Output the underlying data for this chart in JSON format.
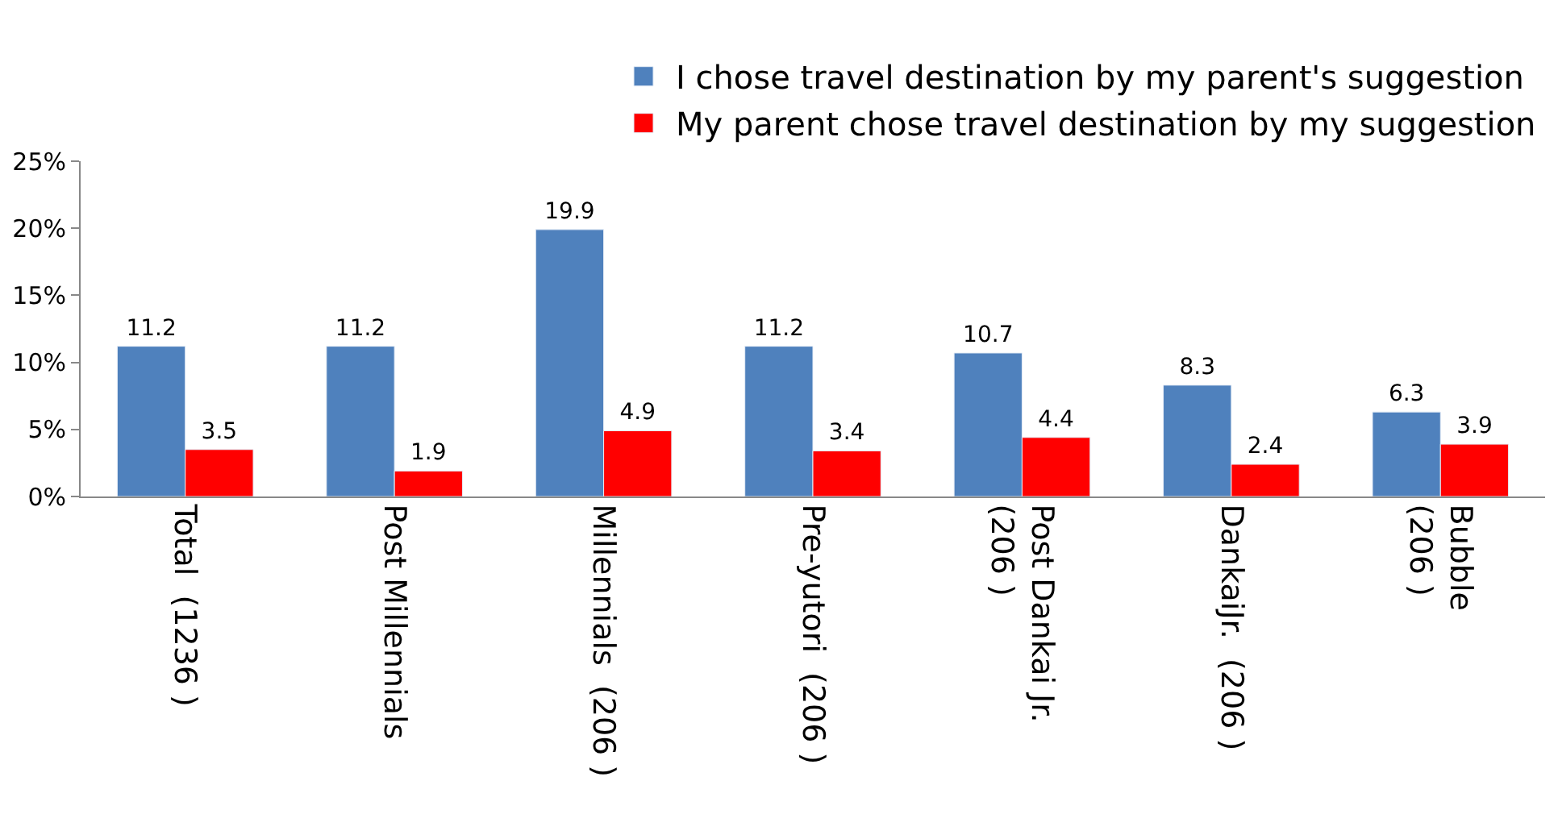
{
  "chart_data": {
    "type": "bar",
    "categories": [
      "Total  (1236 )",
      "Post Millennials",
      "Millennials  (206 )",
      "Pre-yutori  (206 )",
      "Post Dankai Jr.\n(206 )",
      "DankaiJr.  (206 )",
      "Bubble\n(206 )"
    ],
    "series": [
      {
        "name": "I chose travel destination by my parent's suggestion",
        "color": "#4f81bd",
        "values": [
          11.2,
          11.2,
          19.9,
          11.2,
          10.7,
          8.3,
          6.3
        ]
      },
      {
        "name": "My parent chose travel destination by my suggestion",
        "color": "#ff0000",
        "values": [
          3.5,
          1.9,
          4.9,
          3.4,
          4.4,
          2.4,
          3.9
        ]
      }
    ],
    "ylim": [
      0,
      25
    ],
    "yticks": [
      {
        "value": 0,
        "label": "0%"
      },
      {
        "value": 5,
        "label": "5%"
      },
      {
        "value": 10,
        "label": "10%"
      },
      {
        "value": 15,
        "label": "15%"
      },
      {
        "value": 20,
        "label": "20%"
      },
      {
        "value": 25,
        "label": "25%"
      }
    ],
    "data_labels": true,
    "legend": "top right"
  }
}
